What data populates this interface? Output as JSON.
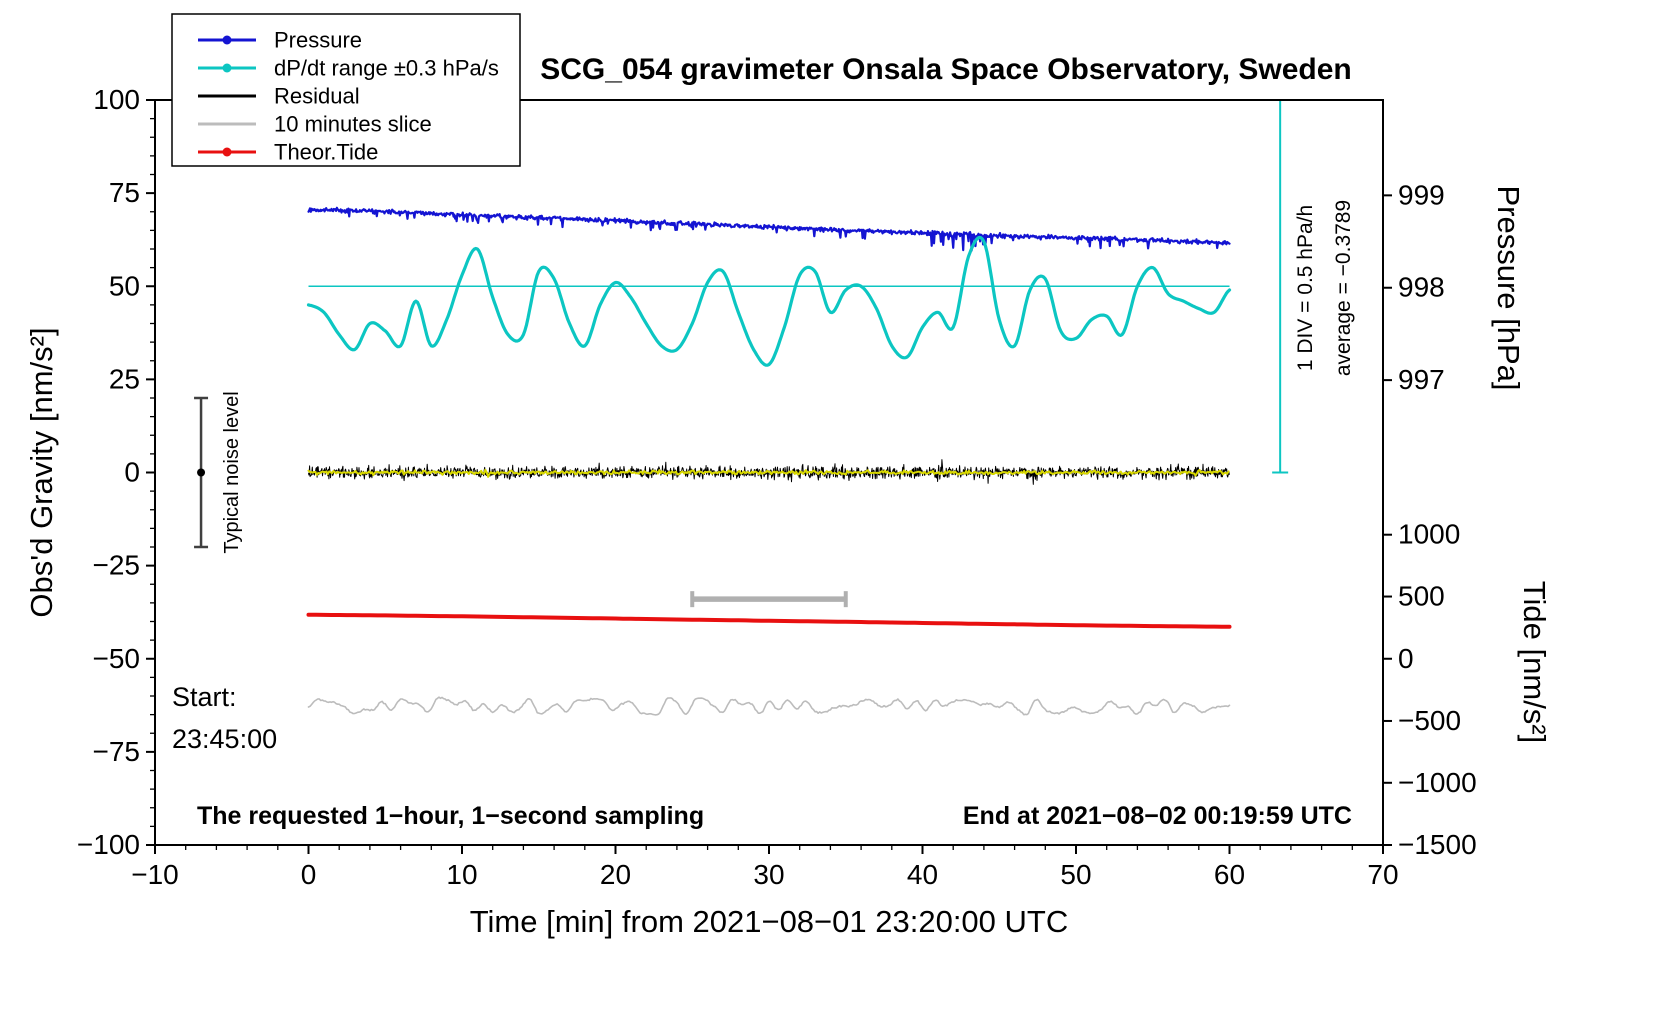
{
  "title": "SCG_054 gravimeter Onsala Space Observatory, Sweden",
  "legend": {
    "items": [
      {
        "id": "pressure",
        "label": "Pressure",
        "color": "#1414d2",
        "marker": "dot"
      },
      {
        "id": "dpdt",
        "label": "dP/dt range ±0.3 hPa/s",
        "color": "#0cc6c2",
        "marker": "dot"
      },
      {
        "id": "residual",
        "label": "Residual",
        "color": "#000000",
        "marker": "line"
      },
      {
        "id": "slice",
        "label": "10 minutes slice",
        "color": "#bcbcbc",
        "marker": "line"
      },
      {
        "id": "tide",
        "label": "Theor.Tide",
        "color": "#e81010",
        "marker": "dot"
      }
    ]
  },
  "chart_data": {
    "type": "line",
    "title": "SCG_054 gravimeter Onsala Space Observatory, Sweden",
    "xlabel": "Time [min] from 2021−08−01 23:20:00 UTC",
    "ylabel": "Obs'd Gravity [nm/s²]",
    "axes": {
      "xlim": [
        -10,
        70
      ],
      "ylim": [
        -100,
        100
      ],
      "x_ticks": [
        -10,
        0,
        10,
        20,
        30,
        40,
        50,
        60,
        70
      ],
      "y_ticks": [
        -100,
        -75,
        -50,
        -25,
        0,
        25,
        50,
        75,
        100
      ],
      "x_minor_step": 2,
      "y_minor_step": 5,
      "right_pressure": {
        "label": "Pressure [hPa]",
        "ticks": [
          {
            "label": "999",
            "gy": 74.4
          },
          {
            "label": "998",
            "gy": 49.6
          },
          {
            "label": "997",
            "gy": 24.8
          }
        ]
      },
      "right_tide": {
        "label": "Tide [nm/s²]",
        "ticks": [
          {
            "label": "1000",
            "gy": -16.7
          },
          {
            "label": "500",
            "gy": -33.3
          },
          {
            "label": "0",
            "gy": -50
          },
          {
            "label": "−500",
            "gy": -66.7
          },
          {
            "label": "−1000",
            "gy": -83.3
          },
          {
            "label": "−1500",
            "gy": -100
          }
        ]
      }
    },
    "series": [
      {
        "id": "slice",
        "name": "10 minutes slice",
        "kind": "wander",
        "baseline": -62.8,
        "amp": 2.2,
        "color": "#bcbcbc",
        "width": 1.6
      },
      {
        "id": "tide",
        "name": "Theor.Tide",
        "kind": "line",
        "points_x": [
          0,
          30,
          60
        ],
        "points_y": [
          -38.2,
          -39.8,
          -41.4
        ],
        "color": "#e81010",
        "width": 4
      },
      {
        "id": "residual",
        "name": "Residual",
        "kind": "noisy-flat",
        "baseline": 0,
        "noise": 1.6,
        "step": 0.035,
        "color": "#000000",
        "width": 1
      },
      {
        "id": "residual-mean",
        "name": "Residual smoothed",
        "kind": "noisy-flat",
        "baseline": 0,
        "noise": 0.5,
        "step": 0.09,
        "color": "#d8d800",
        "width": 2
      },
      {
        "id": "pressure",
        "name": "Pressure",
        "kind": "noisy-trend",
        "x_step": 5,
        "anchors": [
          70.5,
          70.1,
          69.2,
          68.4,
          67.6,
          66.7,
          65.9,
          65.1,
          64.3,
          63.6,
          63.0,
          62.4,
          61.6
        ],
        "noise": 0.55,
        "spike_prob": 0.05,
        "spike_mag": 2.2,
        "dip": {
          "x0": 40.5,
          "x1": 44.5,
          "prob": 0.2,
          "mag": 5
        },
        "color": "#1414d2",
        "width": 2.2
      },
      {
        "id": "dpdt",
        "name": "dP/dt range ±0.3 hPa/s",
        "kind": "smooth",
        "x_step": 1,
        "anchors": [
          45,
          43,
          37,
          33,
          40,
          38,
          34,
          46,
          34,
          41,
          53,
          60,
          47,
          37,
          37,
          54,
          52,
          40,
          34,
          45,
          51,
          47,
          40,
          34,
          33,
          40,
          51,
          54,
          43,
          33,
          29,
          39,
          53,
          54,
          43,
          49,
          50,
          44,
          34,
          31,
          39,
          43,
          39,
          58,
          62,
          41,
          34,
          49,
          52,
          38,
          36,
          41,
          42,
          37,
          50,
          55,
          48,
          46,
          44,
          43,
          49
        ],
        "mean_line": 50,
        "color": "#0cc6c2",
        "width": 3.2
      }
    ],
    "annotations": {
      "noise_bar": {
        "x": -7,
        "y": 0,
        "half_range": 20,
        "label": "Typical noise level",
        "color": "#404040"
      },
      "div_indicator": {
        "x": 63.3,
        "y0": 0,
        "y1": 100,
        "color": "#0cc6c2",
        "line1": "1 DIV = 0.5 hPa/h",
        "line2": "average = −0.3789"
      },
      "slice_bar": {
        "y": -34,
        "x0": 25,
        "x1": 35,
        "color": "#b0b0b0"
      },
      "start_label": {
        "lines": [
          "Start:",
          "23:45:00"
        ],
        "color": "#9a9a9a"
      },
      "bottom_left": "The requested 1−hour, 1−second sampling",
      "bottom_right": "End at 2021−08−02 00:19:59 UTC"
    }
  }
}
